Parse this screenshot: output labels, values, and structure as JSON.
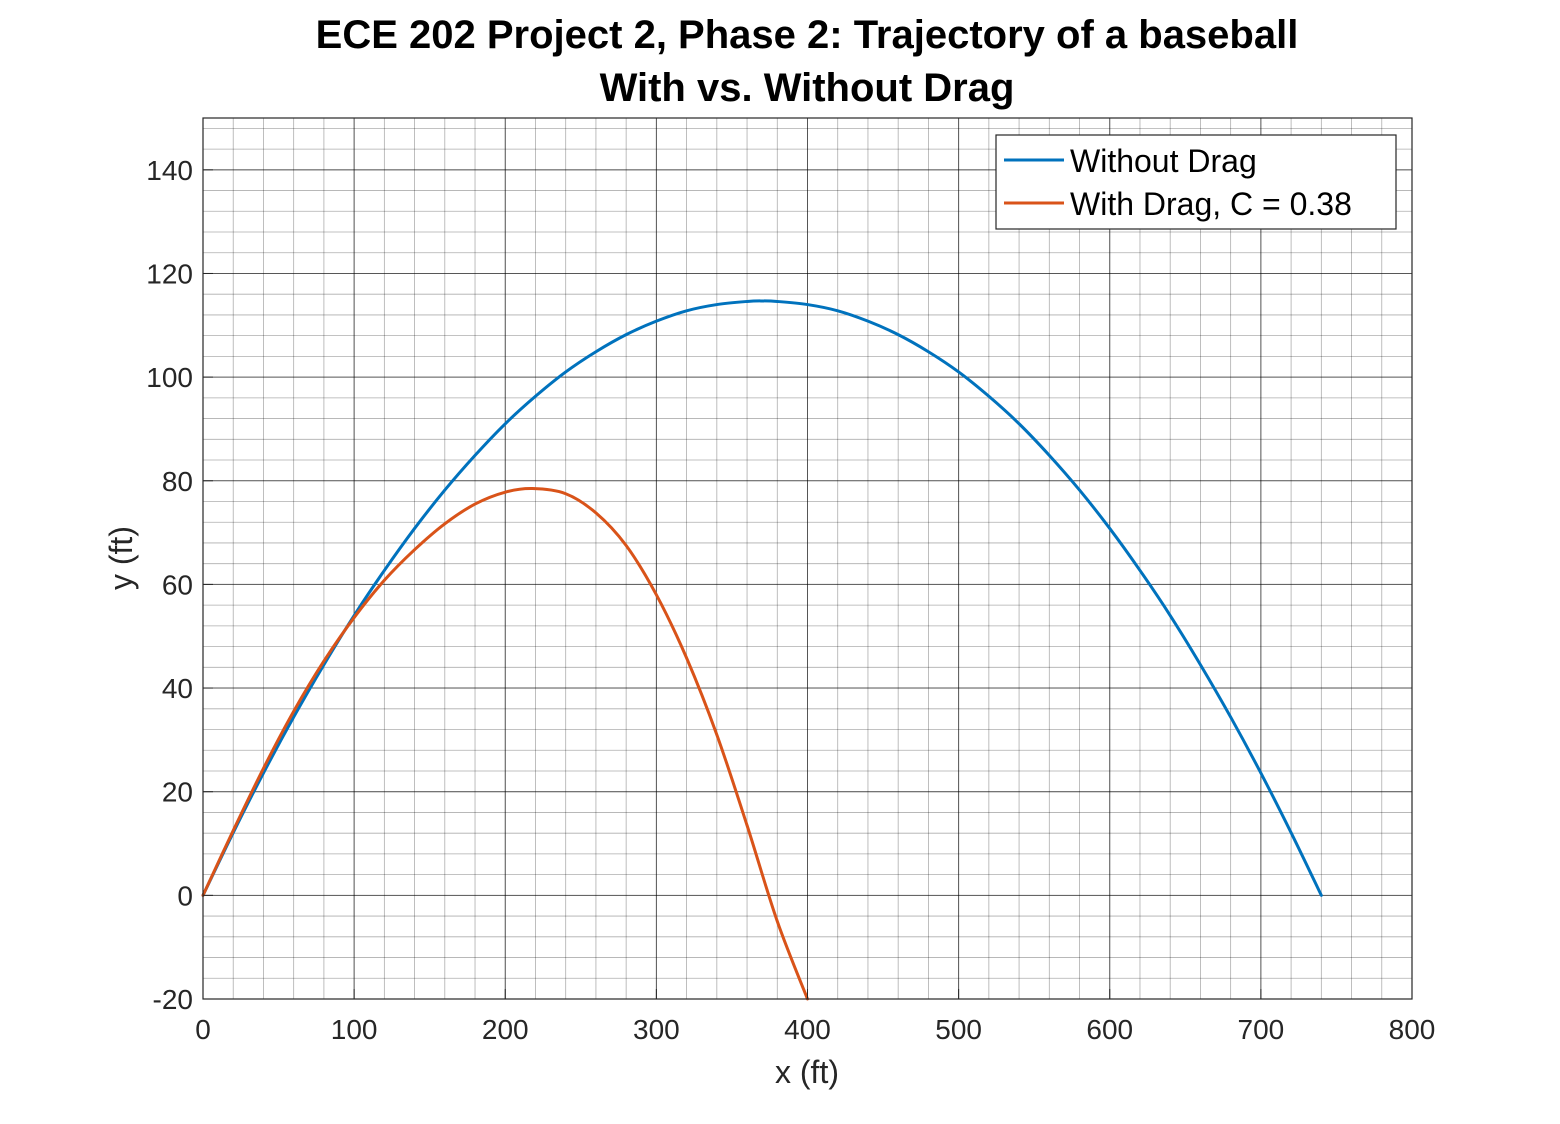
{
  "chart_data": {
    "type": "line",
    "title": [
      "ECE 202 Project 2, Phase 2: Trajectory of a baseball",
      "With vs. Without Drag"
    ],
    "xlabel": "x (ft)",
    "ylabel": "y (ft)",
    "xlim": [
      0,
      800
    ],
    "ylim": [
      -20,
      150
    ],
    "xticks": [
      0,
      100,
      200,
      300,
      400,
      500,
      600,
      700,
      800
    ],
    "yticks": [
      -20,
      0,
      20,
      40,
      60,
      80,
      100,
      120,
      140
    ],
    "xtick_labels": [
      "0",
      "100",
      "200",
      "300",
      "400",
      "500",
      "600",
      "700",
      "800"
    ],
    "ytick_labels": [
      "-20",
      "0",
      "20",
      "40",
      "60",
      "80",
      "100",
      "120",
      "140"
    ],
    "grid": true,
    "minor_grid": true,
    "legend_position": "top-right",
    "series": [
      {
        "name": "Without Drag",
        "color": "#0072BD",
        "x": [
          0,
          20,
          40,
          60,
          80,
          100,
          120,
          140,
          160,
          180,
          200,
          220,
          240,
          260,
          280,
          300,
          320,
          340,
          360,
          370,
          380,
          400,
          420,
          440,
          460,
          480,
          500,
          520,
          540,
          560,
          580,
          600,
          620,
          640,
          660,
          680,
          700,
          720,
          740
        ],
        "y": [
          0,
          12.1,
          23.6,
          34.4,
          44.5,
          54.0,
          62.7,
          70.8,
          78.2,
          84.9,
          91.0,
          96.3,
          101.0,
          104.9,
          108.2,
          110.8,
          112.8,
          114.0,
          114.6,
          114.7,
          114.6,
          114.0,
          112.8,
          110.8,
          108.2,
          104.9,
          101.0,
          96.3,
          91.0,
          84.9,
          78.2,
          70.8,
          62.7,
          54.0,
          44.5,
          34.4,
          23.6,
          12.1,
          0
        ]
      },
      {
        "name": "With Drag, C = 0.38",
        "color": "#D95319",
        "x": [
          0,
          20,
          40,
          60,
          80,
          100,
          120,
          140,
          160,
          180,
          200,
          218,
          240,
          260,
          280,
          300,
          320,
          340,
          360,
          380,
          400
        ],
        "y": [
          0,
          12.5,
          24.5,
          35.5,
          45.2,
          53.6,
          60.8,
          66.7,
          71.7,
          75.5,
          77.8,
          78.5,
          77.5,
          73.8,
          67.5,
          58.0,
          45.8,
          31.0,
          13.5,
          -5.0,
          -20.0
        ]
      }
    ]
  }
}
